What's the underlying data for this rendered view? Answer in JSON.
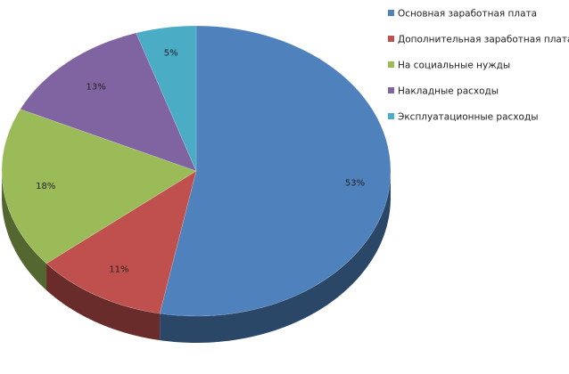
{
  "chart_data": {
    "type": "pie",
    "title": "",
    "three_d": true,
    "legend_position": "right",
    "slices": [
      {
        "label": "Основная заработная плата",
        "value": 53,
        "value_label": "53%",
        "color": "#4F81BD"
      },
      {
        "label": "Дополнительная заработная плата",
        "value": 11,
        "value_label": "11%",
        "color": "#C0504D"
      },
      {
        "label": "На социальные нужды",
        "value": 18,
        "value_label": "18%",
        "color": "#9BBB59"
      },
      {
        "label": "Накладные расходы",
        "value": 13,
        "value_label": "13%",
        "color": "#8064A2"
      },
      {
        "label": "Эксплуатационные расходы",
        "value": 5,
        "value_label": "5%",
        "color": "#4BACC6"
      }
    ]
  }
}
